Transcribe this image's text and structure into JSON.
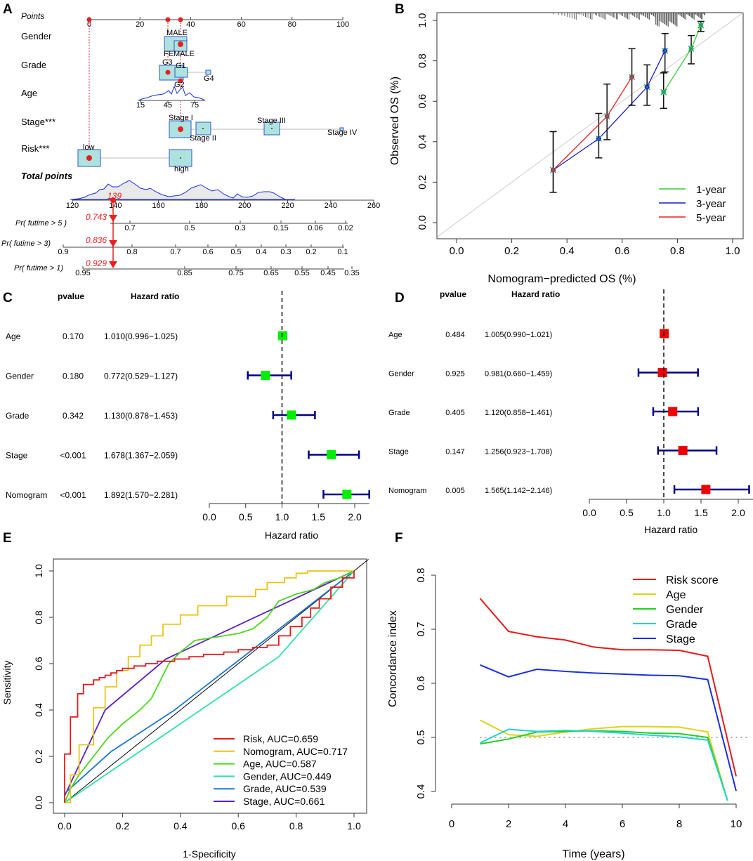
{
  "panels": {
    "A": "A",
    "B": "B",
    "C": "C",
    "D": "D",
    "E": "E",
    "F": "F"
  },
  "chart_data": [
    {
      "panel": "A",
      "type": "nomogram",
      "rows": {
        "points": "Points",
        "gender": "Gender",
        "grade": "Grade",
        "age": "Age",
        "stage": "Stage***",
        "risk": "Risk***",
        "total": "Total points",
        "pr5": "Pr( futime > 5 )",
        "pr3": "Pr( futime > 3)",
        "pr1": "Pr( futime > 1)"
      },
      "points_ticks": [
        "0",
        "20",
        "40",
        "60",
        "80",
        "100"
      ],
      "gender_levels": [
        "MALE",
        "FEMALE"
      ],
      "grade_levels": [
        "G3",
        "G1",
        "G2",
        "G4"
      ],
      "age_ticks": [
        "15",
        "45",
        "75"
      ],
      "stage_levels": [
        "Stage I",
        "Stage II",
        "Stage III",
        "Stage IV"
      ],
      "risk_levels": [
        "low",
        "high"
      ],
      "total_ticks": [
        "120",
        "140",
        "160",
        "180",
        "200",
        "220",
        "240",
        "260"
      ],
      "total_value": "139",
      "pr5_value": "0.743",
      "pr3_value": "0.836",
      "pr1_value": "0.929",
      "pr5_ticks": [
        "0.7",
        "0.5",
        "0.3",
        "0.15",
        "0.06",
        "0.02"
      ],
      "pr3_ticks": [
        "0.9",
        "0.8",
        "0.7",
        "0.6",
        "0.5",
        "0.4",
        "0.3",
        "0.2",
        "0.1"
      ],
      "pr1_ticks": [
        "0.95",
        "0.85",
        "0.75",
        "0.65",
        "0.55",
        "0.45",
        "0.35"
      ]
    },
    {
      "panel": "B",
      "type": "line",
      "title": "",
      "xlabel": "Nomogram−predicted OS (%)",
      "ylabel": "Observed OS (%)",
      "xlim": [
        0,
        1
      ],
      "ylim": [
        0,
        1
      ],
      "x_ticks": [
        "0.0",
        "0.2",
        "0.4",
        "0.6",
        "0.8",
        "1.0"
      ],
      "y_ticks": [
        "0.0",
        "0.2",
        "0.4",
        "0.6",
        "0.8",
        "1.0"
      ],
      "series": [
        {
          "name": "1-year",
          "color": "#33cc33",
          "x": [
            0.75,
            0.85,
            0.885
          ],
          "y": [
            0.645,
            0.86,
            0.975
          ],
          "lo": [
            0.565,
            0.785,
            0.945
          ],
          "hi": [
            0.74,
            0.925,
            0.995
          ]
        },
        {
          "name": "3-year",
          "color": "#1a1acc",
          "x": [
            0.35,
            0.515,
            0.69,
            0.755
          ],
          "y": [
            0.26,
            0.415,
            0.67,
            0.85
          ],
          "lo": [
            0.15,
            0.32,
            0.58,
            0.745
          ],
          "hi": [
            0.45,
            0.54,
            0.78,
            0.935
          ]
        },
        {
          "name": "5-year",
          "color": "#e62020",
          "x": [
            0.35,
            0.545,
            0.635
          ],
          "y": [
            0.26,
            0.525,
            0.72
          ],
          "lo": [
            0.15,
            0.41,
            0.58
          ],
          "hi": [
            0.45,
            0.685,
            0.86
          ]
        }
      ]
    },
    {
      "panel": "C",
      "type": "forest",
      "header_pvalue": "pvalue",
      "header_hr": "Hazard ratio",
      "xlabel": "Hazard ratio",
      "xlim": [
        0,
        2.2
      ],
      "x_ticks": [
        "0.0",
        "0.5",
        "1.0",
        "1.5",
        "2.0"
      ],
      "color": "#00ee00",
      "rows": [
        {
          "name": "Age",
          "pvalue": "0.170",
          "hr_text": "1.010(0.996−1.025)",
          "hr": 1.01,
          "lo": 0.996,
          "hi": 1.025
        },
        {
          "name": "Gender",
          "pvalue": "0.180",
          "hr_text": "0.772(0.529−1.127)",
          "hr": 0.772,
          "lo": 0.529,
          "hi": 1.127
        },
        {
          "name": "Grade",
          "pvalue": "0.342",
          "hr_text": "1.130(0.878−1.453)",
          "hr": 1.13,
          "lo": 0.878,
          "hi": 1.453
        },
        {
          "name": "Stage",
          "pvalue": "<0.001",
          "hr_text": "1.678(1.367−2.059)",
          "hr": 1.678,
          "lo": 1.367,
          "hi": 2.059
        },
        {
          "name": "Nomogram",
          "pvalue": "<0.001",
          "hr_text": "1.892(1.570−2.281)",
          "hr": 1.892,
          "lo": 1.57,
          "hi": 2.281
        }
      ]
    },
    {
      "panel": "D",
      "type": "forest",
      "header_pvalue": "pvalue",
      "header_hr": "Hazard ratio",
      "xlabel": "Hazard ratio",
      "xlim": [
        0,
        2.2
      ],
      "x_ticks": [
        "0.0",
        "0.5",
        "1.0",
        "1.5",
        "2.0"
      ],
      "color": "#ee0000",
      "rows": [
        {
          "name": "Age",
          "pvalue": "0.484",
          "hr_text": "1.005(0.990−1.021)",
          "hr": 1.005,
          "lo": 0.99,
          "hi": 1.021
        },
        {
          "name": "Gender",
          "pvalue": "0.925",
          "hr_text": "0.981(0.660−1.459)",
          "hr": 0.981,
          "lo": 0.66,
          "hi": 1.459
        },
        {
          "name": "Grade",
          "pvalue": "0.405",
          "hr_text": "1.120(0.858−1.461)",
          "hr": 1.12,
          "lo": 0.858,
          "hi": 1.461
        },
        {
          "name": "Stage",
          "pvalue": "0.147",
          "hr_text": "1.256(0.923−1.708)",
          "hr": 1.256,
          "lo": 0.923,
          "hi": 1.708
        },
        {
          "name": "Nomogram",
          "pvalue": "0.005",
          "hr_text": "1.565(1.142−2.146)",
          "hr": 1.565,
          "lo": 1.142,
          "hi": 2.146
        }
      ]
    },
    {
      "panel": "E",
      "type": "line",
      "title": "",
      "xlabel": "1-Specificity",
      "ylabel": "Sensitivity",
      "xlim": [
        0,
        1
      ],
      "ylim": [
        0,
        1
      ],
      "x_ticks": [
        "0.0",
        "0.2",
        "0.4",
        "0.6",
        "0.8",
        "1.0"
      ],
      "y_ticks": [
        "0.0",
        "0.2",
        "0.4",
        "0.6",
        "0.8",
        "1.0"
      ],
      "legend_position": "bottom-right",
      "series": [
        {
          "name": "Risk",
          "label": "Risk, AUC=0.659",
          "color": "#e31a1c",
          "x": [
            0,
            0,
            0.02,
            0.02,
            0.045,
            0.045,
            0.065,
            0.065,
            0.1,
            0.1,
            0.12,
            0.12,
            0.14,
            0.14,
            0.16,
            0.16,
            0.18,
            0.18,
            0.2,
            0.2,
            0.24,
            0.24,
            0.28,
            0.28,
            0.32,
            0.32,
            0.38,
            0.38,
            0.43,
            0.43,
            0.48,
            0.48,
            0.55,
            0.55,
            0.6,
            0.6,
            0.65,
            0.65,
            0.7,
            0.7,
            0.74,
            0.74,
            0.78,
            0.78,
            0.82,
            0.82,
            0.85,
            0.85,
            0.88,
            0.88,
            0.92,
            0.92,
            0.96,
            0.96,
            1,
            1
          ],
          "y": [
            0,
            0.21,
            0.21,
            0.37,
            0.37,
            0.47,
            0.47,
            0.51,
            0.51,
            0.53,
            0.53,
            0.54,
            0.54,
            0.55,
            0.55,
            0.56,
            0.56,
            0.57,
            0.57,
            0.58,
            0.58,
            0.59,
            0.59,
            0.6,
            0.6,
            0.61,
            0.61,
            0.62,
            0.62,
            0.63,
            0.63,
            0.64,
            0.64,
            0.65,
            0.65,
            0.66,
            0.66,
            0.67,
            0.67,
            0.68,
            0.68,
            0.72,
            0.72,
            0.76,
            0.76,
            0.8,
            0.8,
            0.84,
            0.84,
            0.88,
            0.88,
            0.93,
            0.93,
            0.97,
            0.97,
            1
          ]
        },
        {
          "name": "Nomogram",
          "label": "Nomogram, AUC=0.717",
          "color": "#e6c619",
          "x": [
            0,
            0.02,
            0.02,
            0.05,
            0.05,
            0.1,
            0.1,
            0.14,
            0.14,
            0.18,
            0.18,
            0.22,
            0.22,
            0.26,
            0.26,
            0.3,
            0.3,
            0.34,
            0.34,
            0.4,
            0.4,
            0.46,
            0.46,
            0.56,
            0.56,
            0.66,
            0.66,
            0.7,
            0.7,
            0.76,
            0.76,
            0.8,
            0.8,
            0.84,
            0.84,
            0.9,
            0.9,
            0.96,
            1
          ],
          "y": [
            0,
            0,
            0.12,
            0.12,
            0.25,
            0.25,
            0.41,
            0.41,
            0.5,
            0.5,
            0.57,
            0.57,
            0.63,
            0.63,
            0.68,
            0.68,
            0.72,
            0.72,
            0.77,
            0.77,
            0.81,
            0.81,
            0.85,
            0.85,
            0.89,
            0.89,
            0.92,
            0.92,
            0.95,
            0.95,
            0.97,
            0.97,
            0.99,
            0.99,
            1,
            1,
            1,
            1,
            1
          ]
        },
        {
          "name": "Age",
          "label": "Age, AUC=0.587",
          "color": "#4dd61c",
          "x": [
            0,
            0.02,
            0.05,
            0.1,
            0.15,
            0.2,
            0.26,
            0.3,
            0.34,
            0.36,
            0.4,
            0.45,
            0.5,
            0.55,
            0.6,
            0.65,
            0.7,
            0.74,
            0.8,
            0.86,
            0.9,
            0.95,
            1
          ],
          "y": [
            0,
            0.06,
            0.12,
            0.2,
            0.28,
            0.34,
            0.4,
            0.45,
            0.55,
            0.6,
            0.65,
            0.7,
            0.71,
            0.72,
            0.73,
            0.75,
            0.8,
            0.87,
            0.9,
            0.92,
            0.95,
            0.97,
            1
          ]
        },
        {
          "name": "Gender",
          "label": "Gender, AUC=0.449",
          "color": "#33e0a1",
          "x": [
            0,
            0.74,
            1
          ],
          "y": [
            0,
            0.63,
            1
          ]
        },
        {
          "name": "Grade",
          "label": "Grade, AUC=0.539",
          "color": "#1f78d1",
          "x": [
            0,
            0.16,
            0.38,
            1
          ],
          "y": [
            0.04,
            0.22,
            0.4,
            1
          ]
        },
        {
          "name": "Stage",
          "label": "Stage, AUC=0.661",
          "color": "#5b1fc4",
          "x": [
            0,
            0.14,
            0.35,
            1
          ],
          "y": [
            0.03,
            0.4,
            0.62,
            1
          ]
        }
      ]
    },
    {
      "panel": "F",
      "type": "line",
      "title": "",
      "xlabel": "Time (years)",
      "ylabel": "Concordance index",
      "xlim": [
        0,
        10
      ],
      "ylim": [
        0.4,
        0.8
      ],
      "x_ticks": [
        "0",
        "2",
        "4",
        "6",
        "8",
        "10"
      ],
      "y_ticks": [
        "0.4",
        "0.5",
        "0.6",
        "0.7",
        "0.8"
      ],
      "reference_line": 0.5,
      "legend_position": "top-right",
      "x": [
        1,
        2,
        3,
        4,
        5,
        6,
        7,
        8,
        9,
        9.7,
        10
      ],
      "series": [
        {
          "name": "Risk score",
          "color": "#e31a1c",
          "values": [
            0.757,
            0.696,
            0.686,
            0.68,
            0.667,
            0.662,
            0.662,
            0.661,
            0.65,
            null,
            0.428
          ]
        },
        {
          "name": "Age",
          "color": "#dfd21a",
          "values": [
            0.532,
            0.505,
            0.502,
            0.51,
            0.516,
            0.52,
            0.52,
            0.519,
            0.51,
            0.38,
            null
          ]
        },
        {
          "name": "Gender",
          "color": "#22d11c",
          "values": [
            0.488,
            0.497,
            0.51,
            0.511,
            0.512,
            0.511,
            0.508,
            0.507,
            0.5,
            0.38,
            null
          ]
        },
        {
          "name": "Grade",
          "color": "#22d4d4",
          "values": [
            0.49,
            0.515,
            0.511,
            0.513,
            0.511,
            0.508,
            0.504,
            0.501,
            0.495,
            0.38,
            null
          ]
        },
        {
          "name": "Stage",
          "color": "#1a2ee0",
          "values": [
            0.634,
            0.612,
            0.626,
            0.622,
            0.619,
            0.617,
            0.615,
            0.614,
            0.607,
            null,
            0.401
          ]
        }
      ]
    }
  ]
}
